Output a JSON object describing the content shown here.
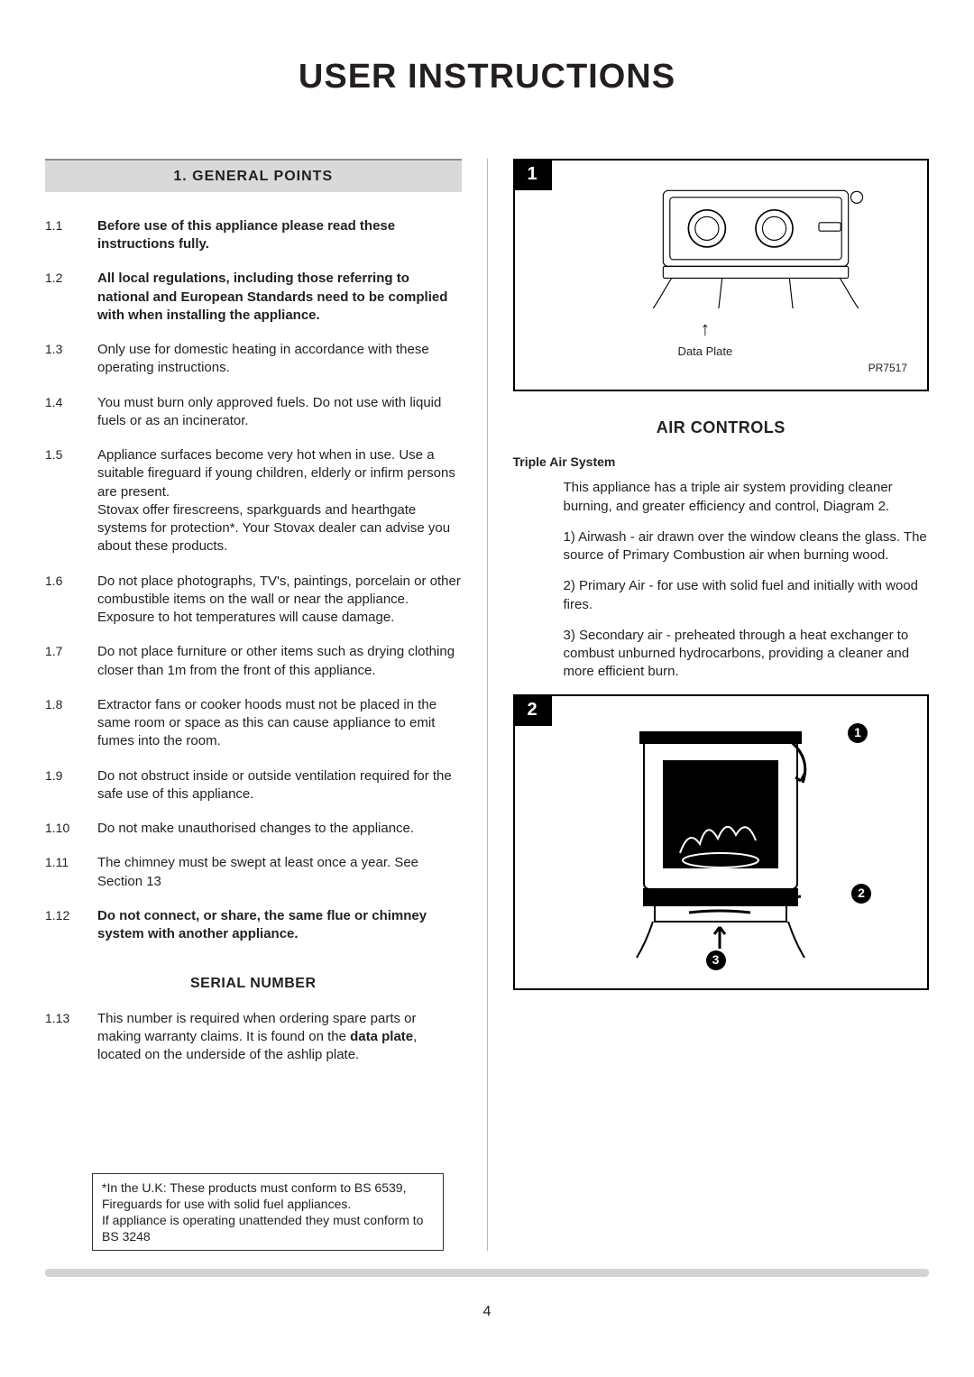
{
  "page": {
    "title": "USER INSTRUCTIONS",
    "number": "4"
  },
  "left": {
    "section1": {
      "header": "1. GENERAL POINTS",
      "items": [
        {
          "n": "1.1",
          "bold": true,
          "text": "Before use of this appliance please read these instructions fully."
        },
        {
          "n": "1.2",
          "bold": true,
          "text": "All local regulations, including those referring to national and European Standards need to be complied with when installing the appliance."
        },
        {
          "n": "1.3",
          "bold": false,
          "text": "Only use for domestic heating in accordance with these operating instructions."
        },
        {
          "n": "1.4",
          "bold": false,
          "text": "You must burn only approved fuels. Do not use with liquid fuels or as an incinerator."
        },
        {
          "n": "1.5",
          "bold": false,
          "text": "Appliance surfaces become very hot when in use. Use a suitable fireguard if young children, elderly or infirm persons are present.\nStovax offer firescreens, sparkguards and hearthgate systems for protection*. Your Stovax dealer can advise you about these products."
        },
        {
          "n": "1.6",
          "bold": false,
          "text": "Do not place photographs, TV's, paintings, porcelain or other combustible items on the wall or near the appliance. Exposure to hot temperatures will cause damage."
        },
        {
          "n": "1.7",
          "bold": false,
          "text": "Do not place furniture or other items such as drying clothing closer than 1m from the front of this appliance."
        },
        {
          "n": "1.8",
          "bold": false,
          "text": "Extractor fans or cooker hoods must not be placed in the same room or space as this can cause appliance to emit fumes into the room."
        },
        {
          "n": "1.9",
          "bold": false,
          "text": "Do not obstruct inside or outside ventilation required for the safe use of this appliance."
        },
        {
          "n": "1.10",
          "bold": false,
          "text": "Do not make unauthorised changes to the appliance."
        },
        {
          "n": "1.11",
          "bold": false,
          "text": "The chimney must be swept at least once a year. See Section 13"
        },
        {
          "n": "1.12",
          "bold": true,
          "text": "Do not connect, or share, the same flue or chimney system with another appliance."
        }
      ]
    },
    "serial": {
      "header": "SERIAL NUMBER",
      "item_n": "1.13",
      "item_pre": "This number is required when ordering spare parts or making warranty claims. It is found on the ",
      "item_bold": "data plate",
      "item_post": ", located on the underside of the ashlip plate."
    },
    "note": "*In the U.K: These products must conform to BS 6539, Fireguards for use with solid fuel appliances.\nIf appliance is operating unattended they must conform to BS 3248"
  },
  "right": {
    "fig1": {
      "badge": "1",
      "label": "Data Plate",
      "code": "PR7517"
    },
    "air": {
      "header": "AIR CONTROLS",
      "subhead": "Triple Air System",
      "paras": [
        "This appliance has a triple air system providing cleaner burning, and greater efficiency and control, Diagram 2.",
        "1) Airwash - air drawn over the window cleans the glass. The source of Primary Combustion air when burning wood.",
        "2) Primary Air - for use with solid fuel and initially with wood fires.",
        "3) Secondary air - preheated through a heat exchanger to combust unburned hydrocarbons, providing a cleaner and more efficient burn."
      ]
    },
    "fig2": {
      "badge": "2",
      "callouts": [
        "1",
        "2",
        "3"
      ]
    }
  },
  "style": {
    "bg": "#ffffff",
    "text": "#231f20",
    "header_bg": "#d9d9d9",
    "header_border": "#8e8e8e",
    "rule": "#d3d3d3",
    "title_fontsize": 38,
    "body_fontsize": 15
  }
}
